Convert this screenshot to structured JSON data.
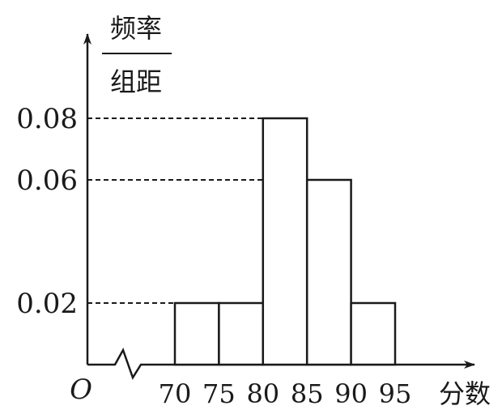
{
  "chart_data": {
    "type": "bar",
    "title": "",
    "ylabel_numerator": "频率",
    "ylabel_denominator": "组距",
    "xlabel": "分数",
    "origin_label": "O",
    "bins": [
      {
        "from": 70,
        "to": 75,
        "value": 0.02
      },
      {
        "from": 75,
        "to": 80,
        "value": 0.02
      },
      {
        "from": 80,
        "to": 85,
        "value": 0.08
      },
      {
        "from": 85,
        "to": 90,
        "value": 0.06
      },
      {
        "from": 90,
        "to": 95,
        "value": 0.02
      }
    ],
    "x_ticks": [
      "70",
      "75",
      "80",
      "85",
      "90",
      "95"
    ],
    "y_ticks": [
      {
        "value": 0.02,
        "label": "0.02"
      },
      {
        "value": 0.06,
        "label": "0.06"
      },
      {
        "value": 0.08,
        "label": "0.08"
      }
    ],
    "xlim": [
      70,
      95
    ],
    "ylim": [
      0,
      0.08
    ],
    "axis_break": true,
    "grid": false,
    "reference_lines": "dashed",
    "legend": "none",
    "colors": {
      "stroke": "#1a1a1a",
      "fill": "#ffffff"
    }
  }
}
